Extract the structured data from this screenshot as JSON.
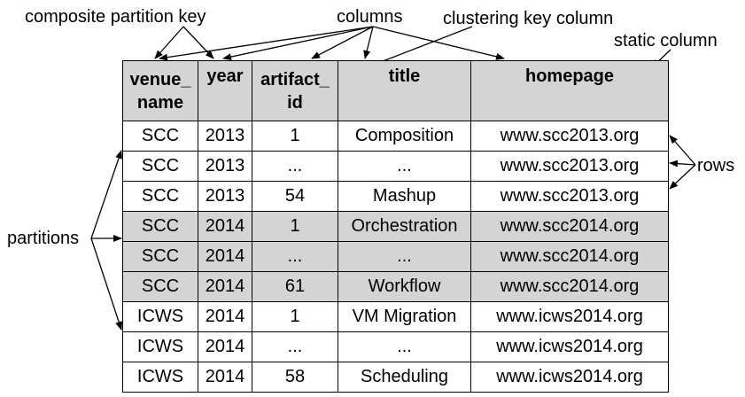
{
  "labels": {
    "composite_partition_key": "composite partition key",
    "columns": "columns",
    "clustering_key_column": "clustering key column",
    "static_column": "static column",
    "partitions": "partitions",
    "rows": "rows"
  },
  "table": {
    "headers": [
      [
        "venue_",
        "name"
      ],
      [
        "year",
        ""
      ],
      [
        "artifact_",
        "id"
      ],
      [
        "title",
        ""
      ],
      [
        "homepage",
        ""
      ]
    ],
    "rows": [
      {
        "shaded": false,
        "cells": [
          "SCC",
          "2013",
          "1",
          "Composition",
          "www.scc2013.org"
        ]
      },
      {
        "shaded": false,
        "cells": [
          "SCC",
          "2013",
          "...",
          "...",
          "www.scc2013.org"
        ]
      },
      {
        "shaded": false,
        "cells": [
          "SCC",
          "2013",
          "54",
          "Mashup",
          "www.scc2013.org"
        ]
      },
      {
        "shaded": true,
        "cells": [
          "SCC",
          "2014",
          "1",
          "Orchestration",
          "www.scc2014.org"
        ]
      },
      {
        "shaded": true,
        "cells": [
          "SCC",
          "2014",
          "...",
          "...",
          "www.scc2014.org"
        ]
      },
      {
        "shaded": true,
        "cells": [
          "SCC",
          "2014",
          "61",
          "Workflow",
          "www.scc2014.org"
        ]
      },
      {
        "shaded": false,
        "cells": [
          "ICWS",
          "2014",
          "1",
          "VM Migration",
          "www.icws2014.org"
        ]
      },
      {
        "shaded": false,
        "cells": [
          "ICWS",
          "2014",
          "...",
          "...",
          "www.icws2014.org"
        ]
      },
      {
        "shaded": false,
        "cells": [
          "ICWS",
          "2014",
          "58",
          "Scheduling",
          "www.icws2014.org"
        ]
      }
    ]
  }
}
